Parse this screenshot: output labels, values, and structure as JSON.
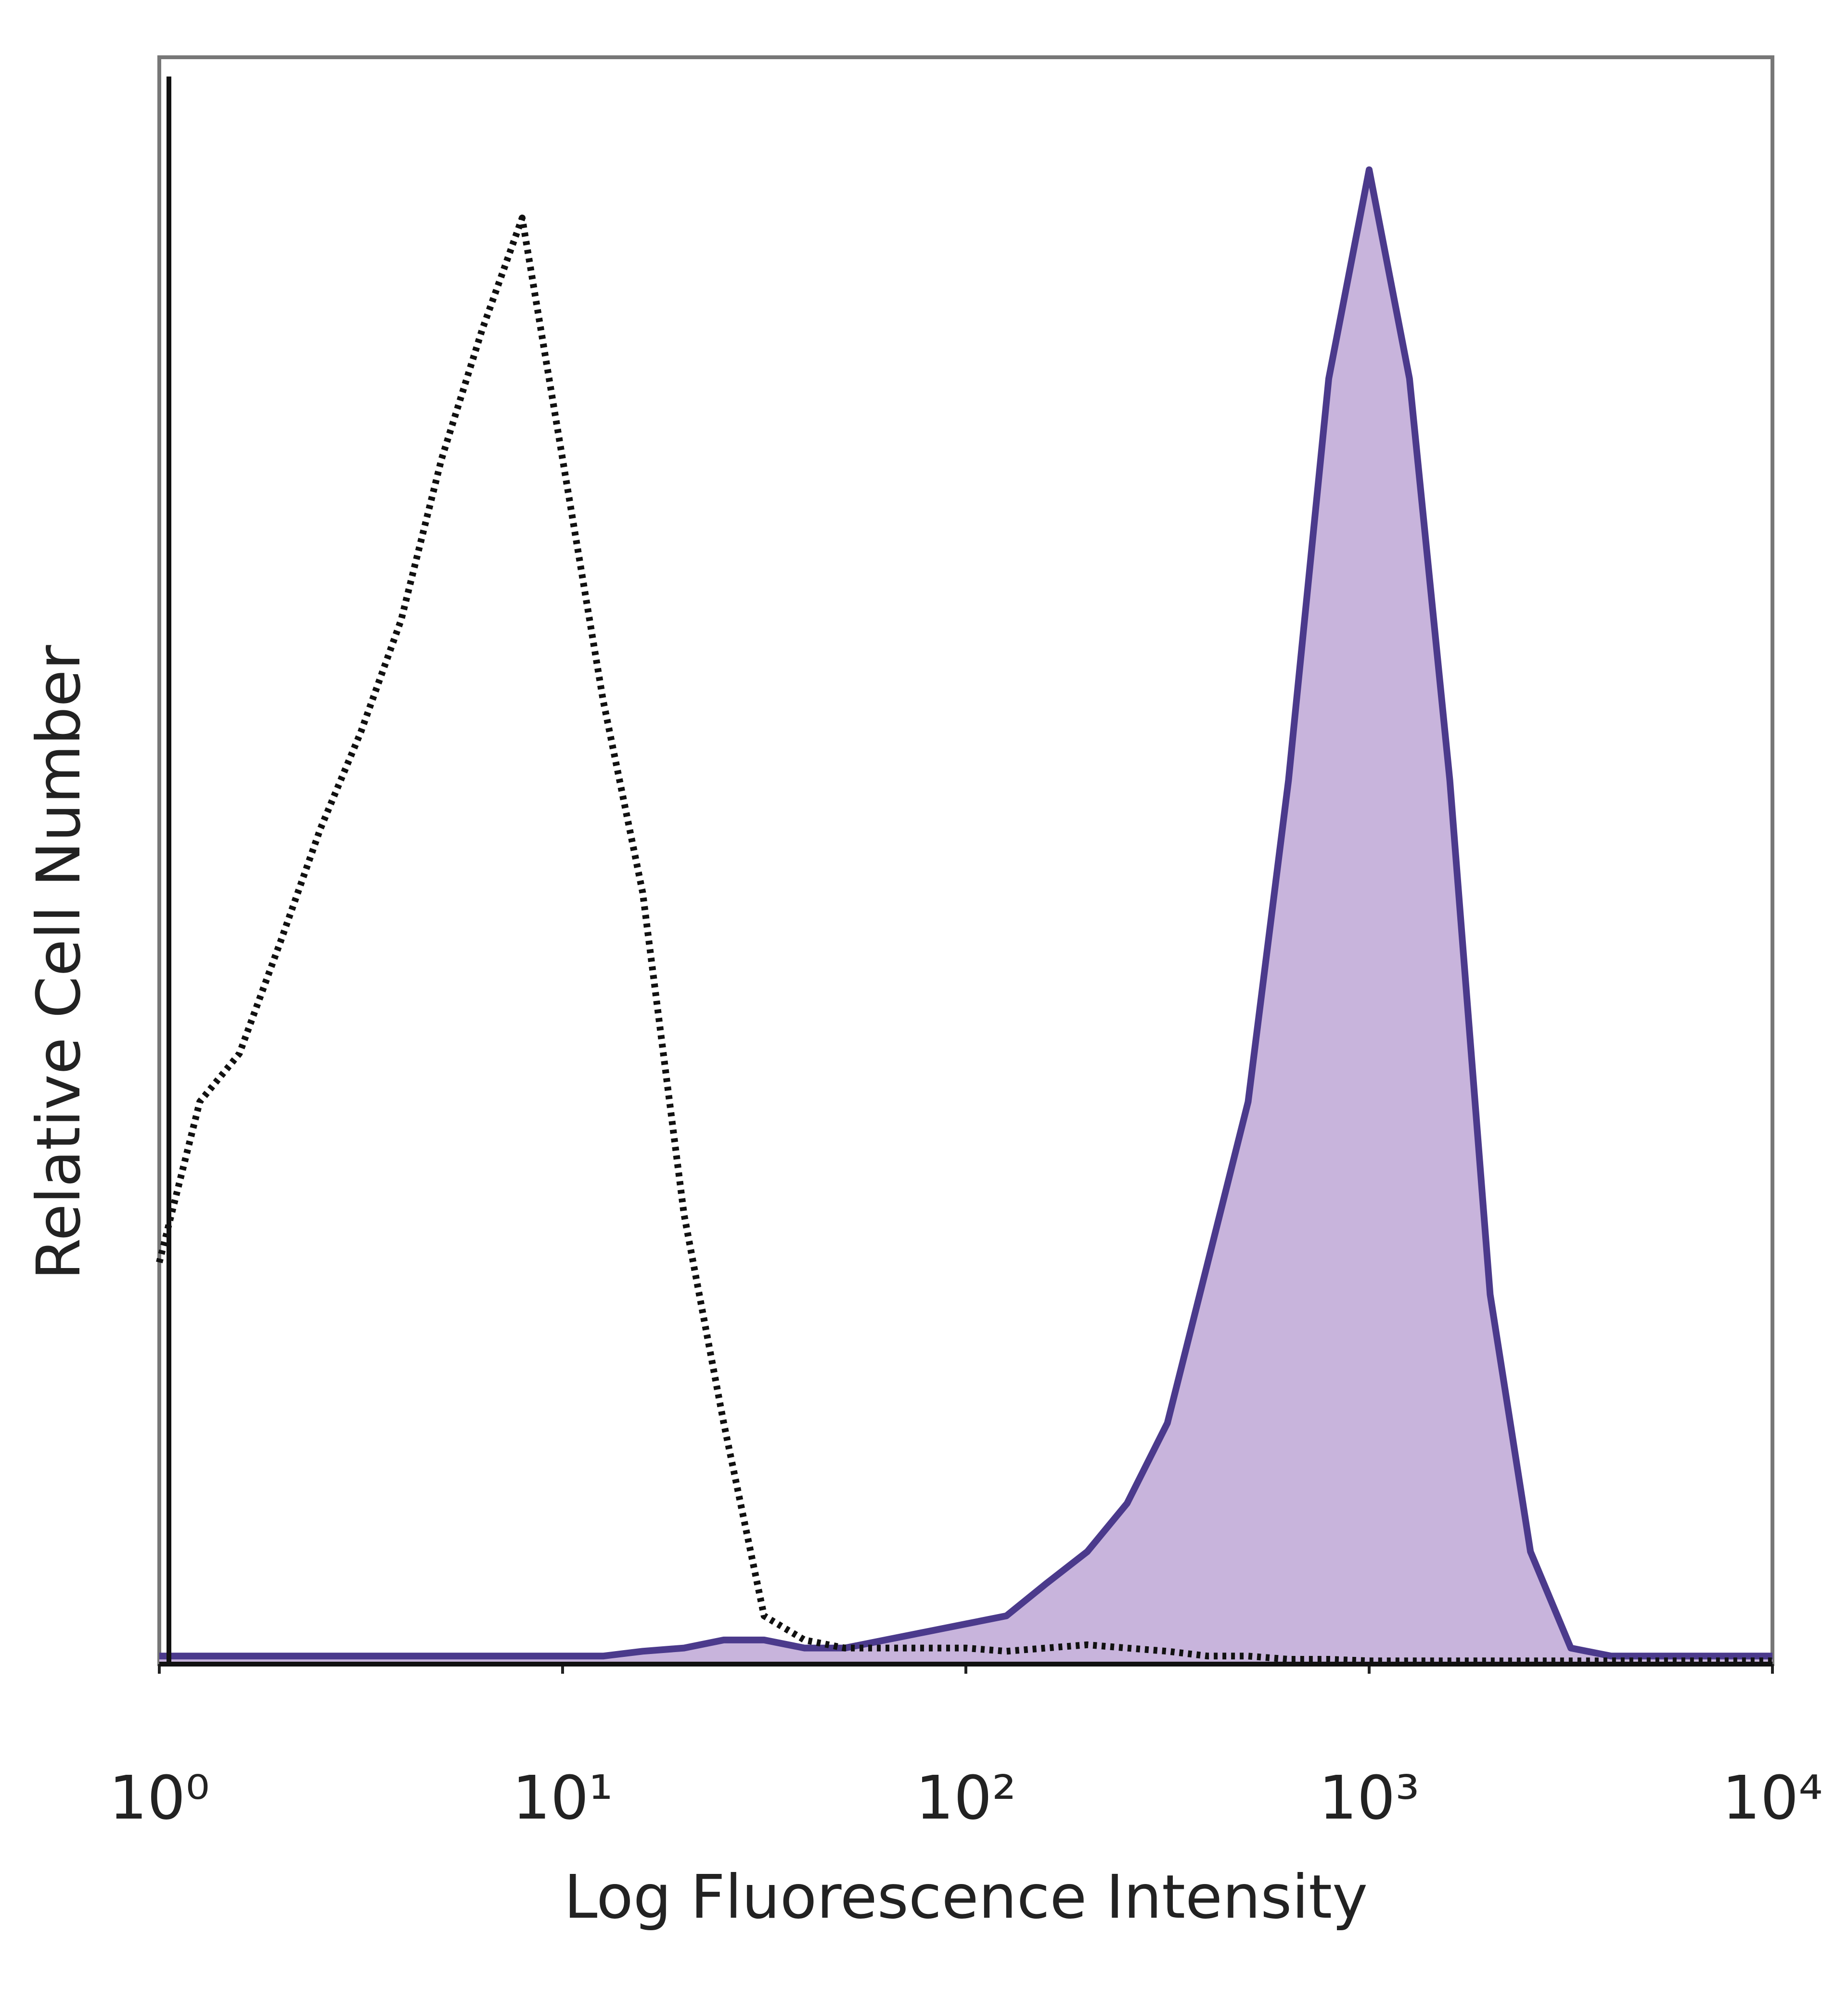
{
  "chart_data": {
    "type": "line",
    "x_label": "Log Fluorescence Intensity",
    "y_label": "Relative Cell Number",
    "xscale": "log",
    "xlim": [
      1,
      10000
    ],
    "ylim": [
      0,
      100
    ],
    "xticks": [
      {
        "value": 1,
        "label": "10⁰"
      },
      {
        "value": 10,
        "label": "10¹"
      },
      {
        "value": 100,
        "label": "10²"
      },
      {
        "value": 1000,
        "label": "10³"
      },
      {
        "value": 10000,
        "label": "10⁴"
      }
    ],
    "grid": false,
    "x": [
      1,
      1.26,
      1.58,
      2,
      2.51,
      3.16,
      3.98,
      5.01,
      6.31,
      7.94,
      10,
      12.6,
      15.8,
      20,
      25.1,
      31.6,
      39.8,
      50.1,
      63.1,
      79.4,
      100,
      126,
      158,
      200,
      251,
      316,
      398,
      501,
      631,
      794,
      1000,
      1259,
      1585,
      1995,
      2512,
      3162,
      3981,
      5012,
      6310,
      7943,
      10000
    ],
    "series": [
      {
        "color": "#111111",
        "line_style": "dotted",
        "values": [
          25,
          35,
          38,
          45,
          52,
          58,
          65,
          75,
          83,
          90,
          75,
          60,
          48,
          28,
          15,
          3,
          1.5,
          1,
          1,
          1,
          1,
          0.8,
          1,
          1.2,
          1,
          0.8,
          0.5,
          0.5,
          0.3,
          0.3,
          0.2,
          0.2,
          0.2,
          0.2,
          0.2,
          0.2,
          0.2,
          0.2,
          0.2,
          0.2,
          0.2
        ]
      },
      {
        "color": "#4b3a8c",
        "fill": "#c8b4dc",
        "line_style": "solid",
        "values": [
          0.5,
          0.5,
          0.5,
          0.5,
          0.5,
          0.5,
          0.5,
          0.5,
          0.5,
          0.5,
          0.5,
          0.5,
          0.8,
          1,
          1.5,
          1.5,
          1,
          1,
          1.5,
          2,
          2.5,
          3,
          5,
          7,
          10,
          15,
          25,
          35,
          55,
          80,
          93,
          80,
          55,
          23,
          7,
          1,
          0.5,
          0.5,
          0.5,
          0.5,
          0.5
        ]
      }
    ]
  }
}
